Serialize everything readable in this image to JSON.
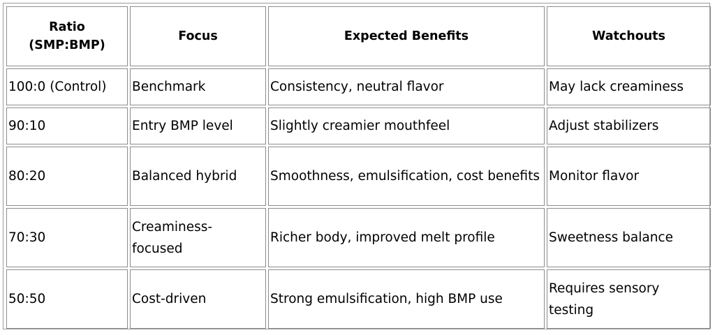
{
  "table": {
    "headers": [
      "Ratio\n(SMP:BMP)",
      "Focus",
      "Expected Benefits",
      "Watchouts"
    ],
    "rows": [
      [
        "100:0 (Control)",
        "Benchmark",
        "Consistency, neutral flavor",
        "May lack creaminess"
      ],
      [
        "90:10",
        "Entry BMP level",
        "Slightly creamier mouthfeel",
        "Adjust stabilizers"
      ],
      [
        "80:20",
        "Balanced hybrid",
        "Smoothness, emulsification, cost benefits",
        "Monitor flavor"
      ],
      [
        "70:30",
        "Creaminess-focused",
        "Richer body, improved melt profile",
        "Sweetness balance"
      ],
      [
        "50:50",
        "Cost-driven",
        "Strong emulsification, high BMP use",
        "Requires sensory testing"
      ]
    ]
  }
}
